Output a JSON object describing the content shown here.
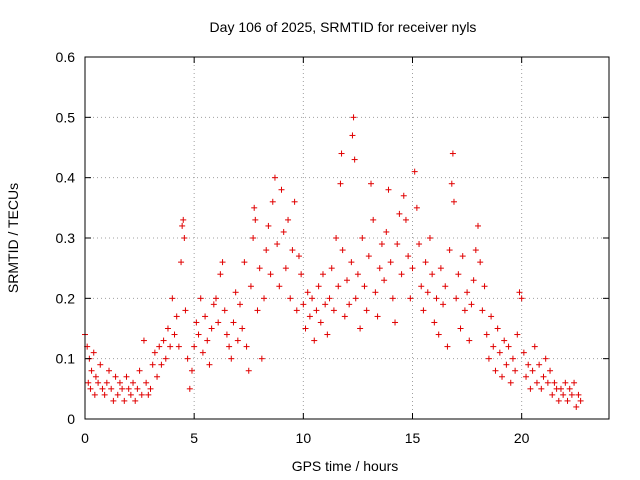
{
  "chart_data": {
    "type": "scatter",
    "title": "Day 106 of 2025, SRMTID for receiver nyls",
    "xlabel": "GPS time / hours",
    "ylabel": "SRMTID / TECUs",
    "xlim": [
      0,
      24
    ],
    "ylim": [
      0,
      0.6
    ],
    "xticks": [
      0,
      5,
      10,
      15,
      20
    ],
    "yticks": [
      0,
      0.1,
      0.2,
      0.3,
      0.4,
      0.5,
      0.6
    ],
    "grid": true,
    "marker": "+",
    "color": "#e00000",
    "series": [
      {
        "name": "SRMTID",
        "points": [
          [
            0.0,
            0.14
          ],
          [
            0.1,
            0.12
          ],
          [
            0.15,
            0.06
          ],
          [
            0.2,
            0.1
          ],
          [
            0.25,
            0.05
          ],
          [
            0.3,
            0.08
          ],
          [
            0.4,
            0.11
          ],
          [
            0.45,
            0.04
          ],
          [
            0.5,
            0.07
          ],
          [
            0.6,
            0.06
          ],
          [
            0.7,
            0.09
          ],
          [
            0.8,
            0.05
          ],
          [
            0.9,
            0.04
          ],
          [
            1.0,
            0.06
          ],
          [
            1.1,
            0.08
          ],
          [
            1.2,
            0.05
          ],
          [
            1.3,
            0.03
          ],
          [
            1.4,
            0.07
          ],
          [
            1.5,
            0.04
          ],
          [
            1.6,
            0.06
          ],
          [
            1.7,
            0.05
          ],
          [
            1.8,
            0.03
          ],
          [
            1.9,
            0.07
          ],
          [
            2.0,
            0.05
          ],
          [
            2.1,
            0.04
          ],
          [
            2.2,
            0.06
          ],
          [
            2.3,
            0.03
          ],
          [
            2.4,
            0.05
          ],
          [
            2.5,
            0.08
          ],
          [
            2.6,
            0.04
          ],
          [
            2.7,
            0.13
          ],
          [
            2.8,
            0.06
          ],
          [
            2.9,
            0.04
          ],
          [
            3.0,
            0.05
          ],
          [
            3.1,
            0.09
          ],
          [
            3.2,
            0.11
          ],
          [
            3.3,
            0.07
          ],
          [
            3.4,
            0.12
          ],
          [
            3.5,
            0.09
          ],
          [
            3.6,
            0.13
          ],
          [
            3.7,
            0.1
          ],
          [
            3.8,
            0.15
          ],
          [
            3.9,
            0.12
          ],
          [
            4.0,
            0.2
          ],
          [
            4.1,
            0.14
          ],
          [
            4.2,
            0.17
          ],
          [
            4.3,
            0.12
          ],
          [
            4.4,
            0.26
          ],
          [
            4.45,
            0.32
          ],
          [
            4.5,
            0.33
          ],
          [
            4.55,
            0.3
          ],
          [
            4.6,
            0.18
          ],
          [
            4.7,
            0.1
          ],
          [
            4.8,
            0.05
          ],
          [
            4.9,
            0.08
          ],
          [
            5.0,
            0.12
          ],
          [
            5.1,
            0.16
          ],
          [
            5.2,
            0.14
          ],
          [
            5.3,
            0.2
          ],
          [
            5.4,
            0.11
          ],
          [
            5.5,
            0.17
          ],
          [
            5.6,
            0.13
          ],
          [
            5.7,
            0.09
          ],
          [
            5.8,
            0.15
          ],
          [
            5.9,
            0.19
          ],
          [
            6.0,
            0.2
          ],
          [
            6.1,
            0.16
          ],
          [
            6.2,
            0.24
          ],
          [
            6.3,
            0.26
          ],
          [
            6.4,
            0.18
          ],
          [
            6.5,
            0.14
          ],
          [
            6.6,
            0.12
          ],
          [
            6.7,
            0.1
          ],
          [
            6.8,
            0.16
          ],
          [
            6.9,
            0.21
          ],
          [
            7.0,
            0.13
          ],
          [
            7.1,
            0.19
          ],
          [
            7.2,
            0.15
          ],
          [
            7.3,
            0.26
          ],
          [
            7.4,
            0.12
          ],
          [
            7.5,
            0.08
          ],
          [
            7.6,
            0.22
          ],
          [
            7.7,
            0.3
          ],
          [
            7.75,
            0.35
          ],
          [
            7.8,
            0.33
          ],
          [
            7.9,
            0.18
          ],
          [
            8.0,
            0.25
          ],
          [
            8.1,
            0.1
          ],
          [
            8.2,
            0.2
          ],
          [
            8.3,
            0.28
          ],
          [
            8.4,
            0.32
          ],
          [
            8.5,
            0.24
          ],
          [
            8.6,
            0.36
          ],
          [
            8.7,
            0.4
          ],
          [
            8.8,
            0.29
          ],
          [
            8.9,
            0.22
          ],
          [
            9.0,
            0.38
          ],
          [
            9.1,
            0.31
          ],
          [
            9.2,
            0.25
          ],
          [
            9.3,
            0.33
          ],
          [
            9.4,
            0.2
          ],
          [
            9.5,
            0.28
          ],
          [
            9.6,
            0.36
          ],
          [
            9.7,
            0.18
          ],
          [
            9.8,
            0.27
          ],
          [
            9.9,
            0.24
          ],
          [
            10.0,
            0.19
          ],
          [
            10.1,
            0.15
          ],
          [
            10.2,
            0.21
          ],
          [
            10.3,
            0.17
          ],
          [
            10.4,
            0.2
          ],
          [
            10.5,
            0.13
          ],
          [
            10.6,
            0.18
          ],
          [
            10.7,
            0.22
          ],
          [
            10.8,
            0.16
          ],
          [
            10.9,
            0.24
          ],
          [
            11.0,
            0.19
          ],
          [
            11.1,
            0.14
          ],
          [
            11.2,
            0.2
          ],
          [
            11.3,
            0.25
          ],
          [
            11.4,
            0.18
          ],
          [
            11.5,
            0.3
          ],
          [
            11.6,
            0.22
          ],
          [
            11.7,
            0.39
          ],
          [
            11.75,
            0.44
          ],
          [
            11.8,
            0.28
          ],
          [
            11.9,
            0.17
          ],
          [
            12.0,
            0.23
          ],
          [
            12.1,
            0.19
          ],
          [
            12.2,
            0.26
          ],
          [
            12.25,
            0.47
          ],
          [
            12.3,
            0.5
          ],
          [
            12.35,
            0.43
          ],
          [
            12.4,
            0.2
          ],
          [
            12.5,
            0.24
          ],
          [
            12.6,
            0.15
          ],
          [
            12.7,
            0.3
          ],
          [
            12.8,
            0.22
          ],
          [
            12.9,
            0.18
          ],
          [
            13.0,
            0.27
          ],
          [
            13.1,
            0.39
          ],
          [
            13.2,
            0.33
          ],
          [
            13.3,
            0.21
          ],
          [
            13.4,
            0.17
          ],
          [
            13.5,
            0.25
          ],
          [
            13.6,
            0.29
          ],
          [
            13.7,
            0.23
          ],
          [
            13.8,
            0.31
          ],
          [
            13.9,
            0.38
          ],
          [
            14.0,
            0.26
          ],
          [
            14.1,
            0.2
          ],
          [
            14.2,
            0.16
          ],
          [
            14.3,
            0.29
          ],
          [
            14.4,
            0.34
          ],
          [
            14.5,
            0.24
          ],
          [
            14.6,
            0.37
          ],
          [
            14.7,
            0.33
          ],
          [
            14.8,
            0.27
          ],
          [
            14.9,
            0.2
          ],
          [
            15.0,
            0.25
          ],
          [
            15.1,
            0.41
          ],
          [
            15.2,
            0.35
          ],
          [
            15.3,
            0.29
          ],
          [
            15.4,
            0.22
          ],
          [
            15.5,
            0.18
          ],
          [
            15.6,
            0.26
          ],
          [
            15.7,
            0.21
          ],
          [
            15.8,
            0.3
          ],
          [
            15.9,
            0.24
          ],
          [
            16.0,
            0.16
          ],
          [
            16.1,
            0.2
          ],
          [
            16.2,
            0.14
          ],
          [
            16.3,
            0.25
          ],
          [
            16.4,
            0.19
          ],
          [
            16.5,
            0.22
          ],
          [
            16.6,
            0.12
          ],
          [
            16.7,
            0.28
          ],
          [
            16.8,
            0.39
          ],
          [
            16.85,
            0.44
          ],
          [
            16.9,
            0.36
          ],
          [
            17.0,
            0.2
          ],
          [
            17.1,
            0.24
          ],
          [
            17.2,
            0.15
          ],
          [
            17.3,
            0.27
          ],
          [
            17.4,
            0.18
          ],
          [
            17.5,
            0.21
          ],
          [
            17.6,
            0.13
          ],
          [
            17.7,
            0.19
          ],
          [
            17.8,
            0.23
          ],
          [
            17.9,
            0.28
          ],
          [
            18.0,
            0.32
          ],
          [
            18.1,
            0.26
          ],
          [
            18.2,
            0.18
          ],
          [
            18.3,
            0.22
          ],
          [
            18.4,
            0.14
          ],
          [
            18.5,
            0.1
          ],
          [
            18.6,
            0.17
          ],
          [
            18.7,
            0.12
          ],
          [
            18.8,
            0.08
          ],
          [
            18.9,
            0.15
          ],
          [
            19.0,
            0.11
          ],
          [
            19.1,
            0.07
          ],
          [
            19.2,
            0.13
          ],
          [
            19.3,
            0.09
          ],
          [
            19.4,
            0.12
          ],
          [
            19.5,
            0.06
          ],
          [
            19.6,
            0.1
          ],
          [
            19.7,
            0.08
          ],
          [
            19.8,
            0.14
          ],
          [
            19.9,
            0.21
          ],
          [
            20.0,
            0.2
          ],
          [
            20.1,
            0.11
          ],
          [
            20.2,
            0.07
          ],
          [
            20.3,
            0.09
          ],
          [
            20.4,
            0.05
          ],
          [
            20.5,
            0.08
          ],
          [
            20.6,
            0.12
          ],
          [
            20.7,
            0.06
          ],
          [
            20.8,
            0.09
          ],
          [
            20.9,
            0.05
          ],
          [
            21.0,
            0.07
          ],
          [
            21.1,
            0.1
          ],
          [
            21.2,
            0.06
          ],
          [
            21.3,
            0.08
          ],
          [
            21.4,
            0.04
          ],
          [
            21.5,
            0.06
          ],
          [
            21.6,
            0.05
          ],
          [
            21.7,
            0.03
          ],
          [
            21.8,
            0.05
          ],
          [
            21.9,
            0.04
          ],
          [
            22.0,
            0.06
          ],
          [
            22.1,
            0.03
          ],
          [
            22.2,
            0.05
          ],
          [
            22.3,
            0.04
          ],
          [
            22.4,
            0.06
          ],
          [
            22.5,
            0.02
          ],
          [
            22.6,
            0.04
          ],
          [
            22.7,
            0.03
          ]
        ]
      }
    ]
  }
}
